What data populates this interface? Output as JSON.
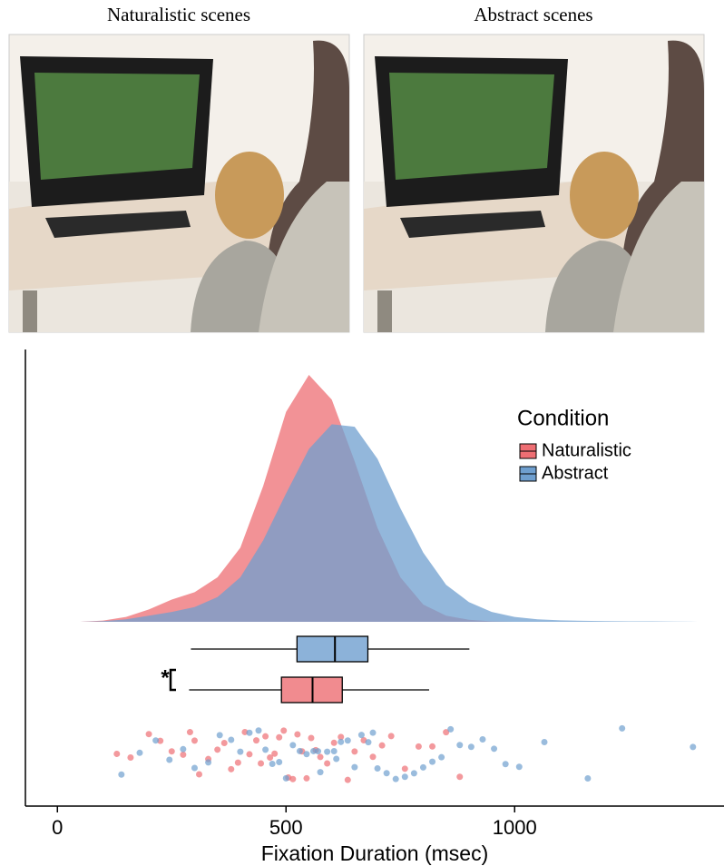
{
  "panels": {
    "left_title": "Naturalistic scenes",
    "right_title": "Abstract scenes"
  },
  "chart_data": {
    "type": "raincloud",
    "xlabel": "Fixation Duration (msec)",
    "xlim": [
      -70,
      1442
    ],
    "xticks": [
      0,
      500,
      1000
    ],
    "density_ylim": [
      0,
      1
    ],
    "legend_title": "Condition",
    "legend_position": "upper right",
    "significance": "*",
    "density_x": [
      50,
      100,
      150,
      200,
      250,
      300,
      350,
      400,
      450,
      500,
      550,
      600,
      650,
      700,
      750,
      800,
      850,
      900,
      950,
      1000,
      1050,
      1100,
      1150,
      1200,
      1250,
      1300,
      1350,
      1400
    ],
    "series": [
      {
        "name": "Naturalistic",
        "color": "#ee6e73",
        "density": [
          0,
          0.005,
          0.02,
          0.05,
          0.09,
          0.12,
          0.18,
          0.3,
          0.55,
          0.85,
          1.0,
          0.9,
          0.65,
          0.38,
          0.18,
          0.07,
          0.025,
          0.008,
          0.002,
          0,
          0,
          0,
          0,
          0,
          0,
          0,
          0,
          0
        ],
        "box": {
          "whisker_low": 288,
          "q1": 490,
          "median": 558,
          "q3": 623,
          "whisker_high": 813
        },
        "points": [
          130,
          160,
          200,
          225,
          250,
          275,
          290,
          310,
          330,
          350,
          365,
          380,
          395,
          410,
          420,
          435,
          445,
          455,
          465,
          475,
          485,
          495,
          505,
          515,
          525,
          535,
          545,
          555,
          565,
          575,
          590,
          605,
          620,
          635,
          650,
          670,
          690,
          710,
          730,
          760,
          790,
          820,
          850,
          880,
          300
        ]
      },
      {
        "name": "Abstract",
        "color": "#6f9fcf",
        "density": [
          0,
          0.003,
          0.01,
          0.025,
          0.04,
          0.06,
          0.1,
          0.18,
          0.33,
          0.52,
          0.7,
          0.8,
          0.79,
          0.66,
          0.46,
          0.28,
          0.15,
          0.08,
          0.04,
          0.02,
          0.01,
          0.006,
          0.004,
          0.003,
          0.002,
          0.002,
          0.001,
          0
        ],
        "box": {
          "whisker_low": 292,
          "q1": 524,
          "median": 607,
          "q3": 679,
          "whisker_high": 901
        },
        "points": [
          140,
          180,
          215,
          245,
          275,
          300,
          330,
          355,
          380,
          400,
          420,
          440,
          455,
          470,
          485,
          500,
          515,
          530,
          545,
          560,
          575,
          590,
          605,
          620,
          635,
          650,
          665,
          680,
          700,
          720,
          740,
          760,
          780,
          800,
          820,
          840,
          860,
          880,
          905,
          930,
          955,
          980,
          1010,
          1065,
          1160,
          1235,
          1390,
          610,
          570,
          690
        ]
      }
    ]
  }
}
